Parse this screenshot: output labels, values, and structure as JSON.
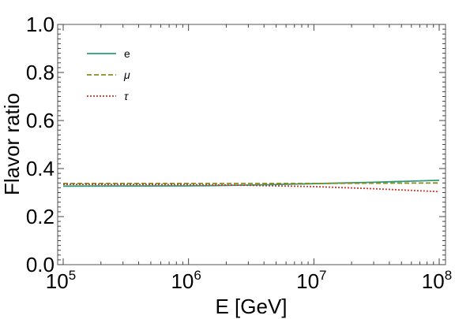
{
  "chart_data": {
    "type": "line",
    "title": "",
    "xlabel": "E [GeV]",
    "ylabel": "Flavor ratio",
    "x_scale": "log",
    "xlim": [
      100000,
      100000000
    ],
    "ylim": [
      0.0,
      1.0
    ],
    "grid": false,
    "legend_position": "top-left",
    "x_ticks": [
      {
        "base": "10",
        "exp": "5"
      },
      {
        "base": "10",
        "exp": "6"
      },
      {
        "base": "10",
        "exp": "7"
      },
      {
        "base": "10",
        "exp": "8"
      }
    ],
    "y_ticks": [
      "0.0",
      "0.2",
      "0.4",
      "0.6",
      "0.8",
      "1.0"
    ],
    "x": [
      100000,
      1000000,
      3000000,
      10000000,
      30000000,
      100000000
    ],
    "series": [
      {
        "name": "e",
        "color": "#2a9d78",
        "dash": "solid",
        "values": [
          0.327,
          0.328,
          0.331,
          0.337,
          0.343,
          0.351
        ]
      },
      {
        "name": "μ",
        "color": "#8c8c1e",
        "dash": "dashed",
        "values": [
          0.338,
          0.338,
          0.338,
          0.338,
          0.339,
          0.34
        ]
      },
      {
        "name": "τ",
        "color": "#c0392b",
        "dash": "dotted",
        "values": [
          0.334,
          0.333,
          0.33,
          0.325,
          0.316,
          0.304
        ]
      }
    ]
  }
}
